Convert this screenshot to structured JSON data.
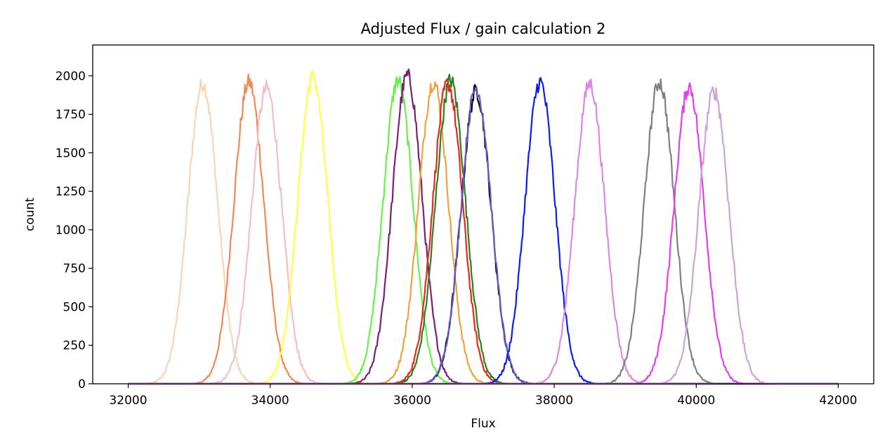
{
  "chart_data": {
    "type": "line",
    "title": "Adjusted Flux / gain calculation 2",
    "xlabel": "Flux",
    "ylabel": "count",
    "xlim": [
      31500,
      42500
    ],
    "ylim": [
      0,
      2200
    ],
    "xticks": [
      32000,
      34000,
      36000,
      38000,
      40000,
      42000
    ],
    "yticks": [
      0,
      250,
      500,
      750,
      1000,
      1250,
      1500,
      1750,
      2000
    ],
    "x_range": [
      32000,
      42000
    ],
    "grid": false,
    "legend": "none",
    "series": [
      {
        "center": 33050,
        "peak": 1950,
        "sigma": 210,
        "color": "#f9d5b6"
      },
      {
        "center": 33700,
        "peak": 1960,
        "sigma": 210,
        "color": "#ee8a5a"
      },
      {
        "center": 33950,
        "peak": 1920,
        "sigma": 210,
        "color": "#f4bec4"
      },
      {
        "center": 34600,
        "peak": 1990,
        "sigma": 210,
        "color": "#ffff40"
      },
      {
        "center": 35800,
        "peak": 1970,
        "sigma": 210,
        "color": "#6af04a"
      },
      {
        "center": 35930,
        "peak": 2000,
        "sigma": 210,
        "color": "#7a2078"
      },
      {
        "center": 36300,
        "peak": 1960,
        "sigma": 210,
        "color": "#f1a23c"
      },
      {
        "center": 36500,
        "peak": 1950,
        "sigma": 210,
        "color": "#e8271e"
      },
      {
        "center": 36540,
        "peak": 1970,
        "sigma": 210,
        "color": "#2e7d1e"
      },
      {
        "center": 36900,
        "peak": 1900,
        "sigma": 210,
        "color": "#000000"
      },
      {
        "center": 36900,
        "peak": 1920,
        "sigma": 210,
        "color": "#6a5ac8"
      },
      {
        "center": 37800,
        "peak": 1960,
        "sigma": 210,
        "color": "#0a1ef4"
      },
      {
        "center": 38500,
        "peak": 1950,
        "sigma": 210,
        "color": "#dd88e6"
      },
      {
        "center": 39480,
        "peak": 1960,
        "sigma": 210,
        "color": "#808080"
      },
      {
        "center": 39900,
        "peak": 1930,
        "sigma": 210,
        "color": "#e83ee8"
      },
      {
        "center": 40250,
        "peak": 1900,
        "sigma": 210,
        "color": "#cfa2d8"
      }
    ]
  }
}
